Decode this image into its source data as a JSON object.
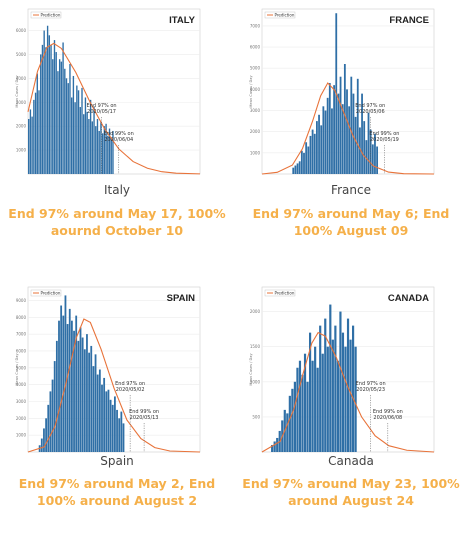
{
  "colors": {
    "bars": "#2f6fa6",
    "prediction": "#e8733a",
    "summary": "#f5b04a",
    "caption": "#444444"
  },
  "legend_label": "Prediction",
  "charts": [
    {
      "caption": "Italy",
      "summary": "End 97% around May 17, 100% aournd October 10",
      "chart_data": {
        "type": "bar",
        "title": "ITALY",
        "ylabel": "Mean Cases / Day",
        "yticks": [
          1000,
          2000,
          3000,
          4000,
          5000,
          6000
        ],
        "ylim": [
          0,
          6900
        ],
        "xlim": [
          0,
          180
        ],
        "values": [
          2300,
          2700,
          2400,
          3100,
          3400,
          4200,
          3500,
          5000,
          5400,
          6000,
          5300,
          6200,
          5800,
          5400,
          4800,
          5600,
          5100,
          4300,
          4800,
          4700,
          5500,
          4400,
          4000,
          3800,
          4600,
          3200,
          4100,
          3000,
          3700,
          3500,
          2800,
          3600,
          2500,
          3200,
          2600,
          2300,
          3100,
          2200,
          2800,
          2000,
          2300,
          1800,
          2200,
          1700,
          2000,
          2100,
          1600,
          1900,
          1500,
          1800
        ],
        "prediction": [
          [
            0,
            2600
          ],
          [
            10,
            4300
          ],
          [
            20,
            5300
          ],
          [
            27,
            5460
          ],
          [
            35,
            5250
          ],
          [
            50,
            4250
          ],
          [
            65,
            3000
          ],
          [
            80,
            1900
          ],
          [
            95,
            1050
          ],
          [
            110,
            520
          ],
          [
            125,
            240
          ],
          [
            140,
            95
          ],
          [
            155,
            35
          ],
          [
            180,
            5
          ]
        ],
        "annotations": [
          {
            "text": [
              "End 97% on",
              "2020/05/17"
            ],
            "x": 77
          },
          {
            "text": [
              "End 99% on",
              "2020/06/04"
            ],
            "x": 95
          }
        ]
      }
    },
    {
      "caption": "France",
      "summary": "End 97% around May 6; End 100% August 09",
      "chart_data": {
        "type": "bar",
        "title": "FRANCE",
        "ylabel": "Mean Cases / Day",
        "yticks": [
          1000,
          2000,
          3000,
          4000,
          5000,
          6000,
          7000
        ],
        "ylim": [
          0,
          7800
        ],
        "xlim": [
          0,
          170
        ],
        "values": [
          300,
          400,
          500,
          600,
          1100,
          1000,
          1500,
          1300,
          1800,
          2100,
          1900,
          2500,
          2800,
          2300,
          3200,
          3000,
          3600,
          4300,
          3100,
          4200,
          7600,
          3800,
          4600,
          3300,
          5200,
          4000,
          3200,
          4600,
          3800,
          2700,
          4500,
          2200,
          3800,
          2500,
          1600,
          2900,
          2100,
          1400,
          1900,
          1300
        ],
        "prediction": [
          [
            0,
            0
          ],
          [
            15,
            80
          ],
          [
            30,
            420
          ],
          [
            40,
            1200
          ],
          [
            50,
            2500
          ],
          [
            58,
            3700
          ],
          [
            65,
            4300
          ],
          [
            72,
            3950
          ],
          [
            80,
            3000
          ],
          [
            90,
            1800
          ],
          [
            100,
            900
          ],
          [
            110,
            380
          ],
          [
            125,
            90
          ],
          [
            140,
            15
          ],
          [
            170,
            0
          ]
        ],
        "annotations": [
          {
            "text": [
              "End 97% on",
              "2020/05/06"
            ],
            "x": 107
          },
          {
            "text": [
              "End 99% on",
              "2020/05/19"
            ],
            "x": 121
          }
        ]
      }
    },
    {
      "caption": "Spain",
      "summary": "End 97% around May 2, End 100% around August 2",
      "chart_data": {
        "type": "bar",
        "title": "SPAIN",
        "ylabel": "Mean Cases / Day",
        "yticks": [
          1000,
          2000,
          3000,
          4000,
          5000,
          6000,
          7000,
          8000,
          9000
        ],
        "ylim": [
          0,
          9800
        ],
        "xlim": [
          0,
          160
        ],
        "values": [
          400,
          800,
          1400,
          2000,
          2800,
          3600,
          4300,
          5400,
          6600,
          7800,
          8700,
          8100,
          9300,
          7600,
          8500,
          7800,
          7200,
          8100,
          6600,
          7400,
          6800,
          6100,
          7000,
          5900,
          6300,
          5100,
          5800,
          4600,
          4900,
          4000,
          4400,
          3600,
          3700,
          3100,
          2800,
          3300,
          2500,
          2000,
          2400,
          1700
        ],
        "prediction": [
          [
            0,
            0
          ],
          [
            15,
            300
          ],
          [
            25,
            1500
          ],
          [
            35,
            4000
          ],
          [
            45,
            6800
          ],
          [
            52,
            7900
          ],
          [
            58,
            7700
          ],
          [
            68,
            6100
          ],
          [
            80,
            3800
          ],
          [
            92,
            1900
          ],
          [
            105,
            800
          ],
          [
            118,
            260
          ],
          [
            132,
            60
          ],
          [
            160,
            0
          ]
        ],
        "annotations": [
          {
            "text": [
              "End 97% on",
              "2020/05/02"
            ],
            "x": 95
          },
          {
            "text": [
              "End 99% on",
              "2020/05/13"
            ],
            "x": 108
          }
        ]
      }
    },
    {
      "caption": "Canada",
      "summary": "End 97% around May 23, 100% around August 24",
      "chart_data": {
        "type": "bar",
        "title": "CANADA",
        "ylabel": "Mean Cases / Day",
        "yticks": [
          500,
          1000,
          1500,
          2000
        ],
        "ylim": [
          0,
          2350
        ],
        "xlim": [
          0,
          190
        ],
        "values": [
          100,
          150,
          200,
          300,
          450,
          600,
          550,
          800,
          900,
          1000,
          1200,
          1300,
          1100,
          1400,
          1000,
          1700,
          1300,
          1500,
          1200,
          1800,
          1400,
          1900,
          1500,
          2100,
          1600,
          1800,
          1300,
          2000,
          1700,
          1500,
          1900,
          1600,
          1800,
          1500
        ],
        "prediction": [
          [
            0,
            0
          ],
          [
            20,
            150
          ],
          [
            35,
            600
          ],
          [
            45,
            1100
          ],
          [
            55,
            1550
          ],
          [
            62,
            1700
          ],
          [
            70,
            1650
          ],
          [
            82,
            1350
          ],
          [
            95,
            920
          ],
          [
            110,
            500
          ],
          [
            125,
            230
          ],
          [
            140,
            90
          ],
          [
            160,
            25
          ],
          [
            190,
            0
          ]
        ],
        "annotations": [
          {
            "text": [
              "End 97% on",
              "2020/05/23"
            ],
            "x": 120
          },
          {
            "text": [
              "End 99% on",
              "2020/06/08"
            ],
            "x": 139
          }
        ]
      }
    }
  ]
}
